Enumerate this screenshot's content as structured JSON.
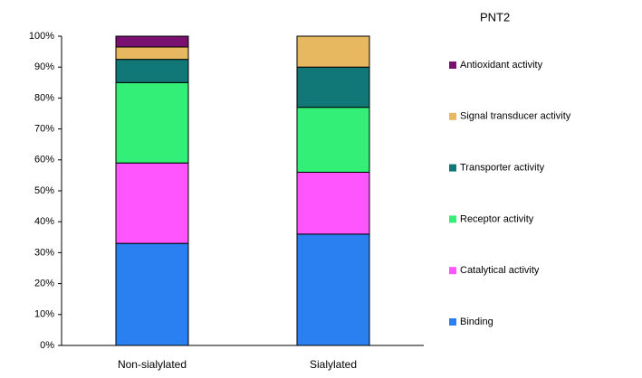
{
  "chart_data": {
    "type": "stacked_bar",
    "title": "PNT2",
    "categories": [
      "Non-sialylated",
      "Sialylated"
    ],
    "series": [
      {
        "name": "Binding",
        "color": "#2a80f0",
        "values": [
          33,
          36
        ]
      },
      {
        "name": "Catalytical activity",
        "color": "#ff55ff",
        "values": [
          26,
          20
        ]
      },
      {
        "name": "Receptor activity",
        "color": "#33ee77",
        "values": [
          26,
          21
        ]
      },
      {
        "name": "Transporter activity",
        "color": "#117777",
        "values": [
          7.5,
          13
        ]
      },
      {
        "name": "Signal transducer activity",
        "color": "#e8b860",
        "values": [
          4,
          10
        ]
      },
      {
        "name": "Antioxidant activity",
        "color": "#7a1070",
        "values": [
          3.5,
          0
        ]
      }
    ],
    "ylim": [
      0,
      100
    ],
    "yticks": [
      {
        "value": 0,
        "label": "0%"
      },
      {
        "value": 10,
        "label": "10%"
      },
      {
        "value": 20,
        "label": "20%"
      },
      {
        "value": 30,
        "label": "30%"
      },
      {
        "value": 40,
        "label": "40%"
      },
      {
        "value": 50,
        "label": "50%"
      },
      {
        "value": 60,
        "label": "60%"
      },
      {
        "value": 70,
        "label": "70%"
      },
      {
        "value": 80,
        "label": "80%"
      },
      {
        "value": 90,
        "label": "90%"
      },
      {
        "value": 100,
        "label": "100%"
      }
    ],
    "grid": false,
    "legend": "right"
  }
}
